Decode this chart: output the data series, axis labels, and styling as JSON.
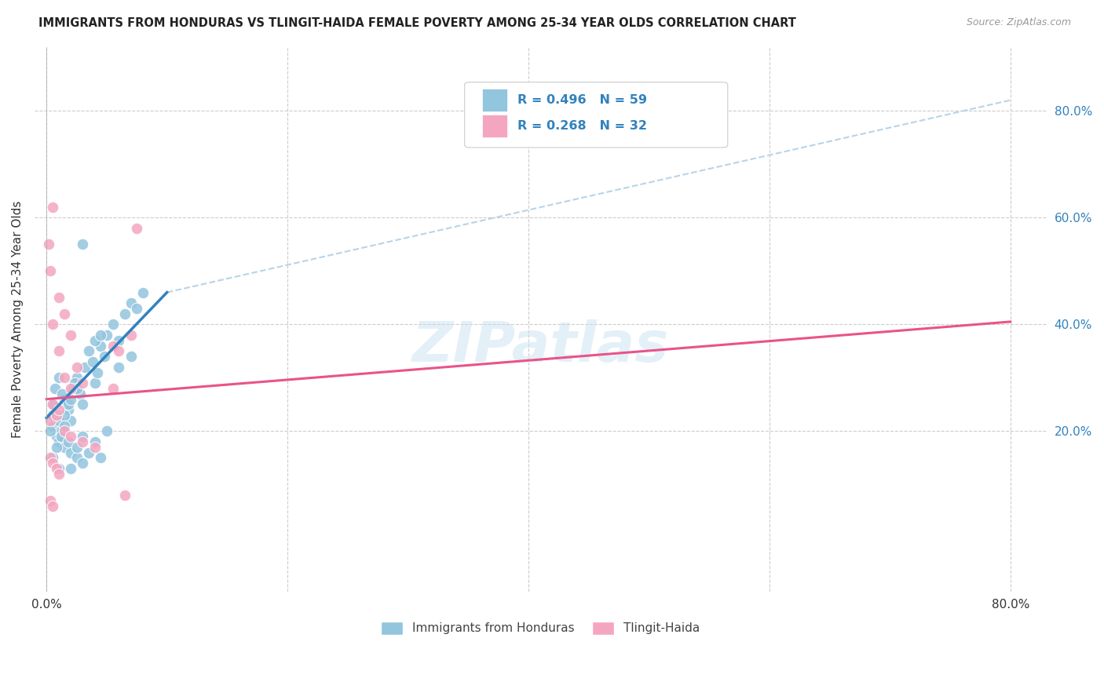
{
  "title": "IMMIGRANTS FROM HONDURAS VS TLINGIT-HAIDA FEMALE POVERTY AMONG 25-34 YEAR OLDS CORRELATION CHART",
  "source": "Source: ZipAtlas.com",
  "ylabel": "Female Poverty Among 25-34 Year Olds",
  "blue_R": "R = 0.496",
  "blue_N": "N = 59",
  "pink_R": "R = 0.268",
  "pink_N": "N = 32",
  "blue_scatter_color": "#92c5de",
  "pink_scatter_color": "#f4a6c0",
  "blue_line_color": "#3182bd",
  "pink_line_color": "#e9538a",
  "diag_line_color": "#b8d4e8",
  "grid_color": "#cccccc",
  "background_color": "#ffffff",
  "watermark": "ZIPatlas",
  "blue_points_x": [
    0.5,
    0.8,
    1.0,
    1.2,
    1.5,
    1.8,
    2.0,
    2.2,
    2.5,
    2.8,
    3.0,
    3.2,
    3.5,
    3.8,
    4.0,
    4.2,
    4.5,
    4.8,
    5.0,
    5.5,
    6.0,
    6.5,
    7.0,
    7.5,
    8.0,
    1.0,
    1.5,
    2.0,
    2.5,
    3.0,
    0.3,
    0.5,
    0.7,
    1.0,
    1.3,
    1.5,
    1.8,
    2.0,
    2.3,
    2.5,
    0.5,
    0.8,
    1.2,
    1.5,
    1.8,
    2.5,
    3.0,
    3.5,
    4.0,
    4.5,
    5.0,
    6.0,
    7.0,
    3.0,
    0.5,
    1.0,
    2.0,
    4.0,
    4.5
  ],
  "blue_points_y": [
    21,
    19,
    22,
    20,
    26,
    24,
    22,
    28,
    30,
    27,
    25,
    32,
    35,
    33,
    29,
    31,
    36,
    34,
    38,
    40,
    37,
    42,
    44,
    43,
    46,
    18,
    17,
    16,
    15,
    14,
    20,
    25,
    28,
    30,
    27,
    23,
    25,
    26,
    29,
    28,
    15,
    17,
    19,
    21,
    18,
    17,
    19,
    16,
    18,
    15,
    20,
    32,
    34,
    55,
    23,
    13,
    13,
    37,
    38
  ],
  "pink_points_x": [
    0.2,
    0.5,
    1.0,
    0.3,
    1.5,
    2.0,
    0.5,
    1.0,
    1.5,
    2.0,
    2.5,
    3.0,
    5.5,
    6.0,
    7.0,
    0.3,
    0.5,
    0.8,
    1.0,
    1.5,
    2.0,
    3.0,
    4.0,
    0.3,
    0.5,
    0.8,
    1.0,
    0.3,
    0.5,
    6.5,
    7.5,
    5.5
  ],
  "pink_points_y": [
    55,
    62,
    45,
    50,
    42,
    38,
    40,
    35,
    30,
    28,
    32,
    29,
    36,
    35,
    38,
    22,
    25,
    23,
    24,
    20,
    19,
    18,
    17,
    15,
    14,
    13,
    12,
    7,
    6,
    8,
    58,
    28
  ],
  "blue_line_x0": 0.0,
  "blue_line_y0": 22.5,
  "blue_line_x1": 10.0,
  "blue_line_y1": 46.0,
  "blue_solid_end_x": 10.0,
  "pink_line_x0": 0.0,
  "pink_line_y0": 26.0,
  "pink_line_x1": 80.0,
  "pink_line_y1": 40.5,
  "diag_line_x0": 10.0,
  "diag_line_y0": 46.0,
  "diag_line_x1": 80.0,
  "diag_line_y1": 82.0,
  "xlim_min": -1.0,
  "xlim_max": 83.0,
  "ylim_min": -10.0,
  "ylim_max": 92.0,
  "yticks": [
    20,
    40,
    60,
    80
  ],
  "ytick_labels": [
    "20.0%",
    "40.0%",
    "60.0%",
    "80.0%"
  ],
  "xtick_labels_left": "0.0%",
  "xtick_labels_right": "80.0%"
}
